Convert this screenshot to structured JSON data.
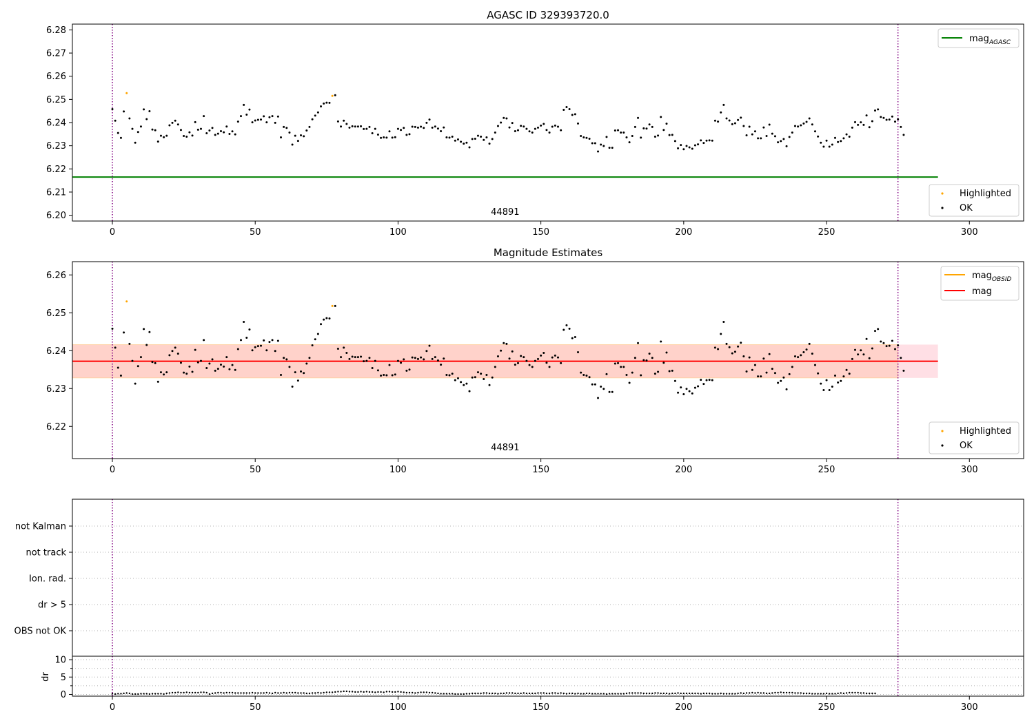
{
  "colors": {
    "agasc": "#008000",
    "obsid": "#ffa500",
    "mag": "#ff0000",
    "highlighted": "#ffa500",
    "ok": "#000000",
    "obsid_band": "#ffa07a",
    "mag_band": "#ffc0cb",
    "vline": "#800080",
    "grid": "#b0b0b0"
  },
  "chart_data": [
    {
      "type": "scatter",
      "title": "AGASC ID 329393720.0",
      "xlim": [
        -14,
        319
      ],
      "ylim": [
        6.1975,
        6.2825
      ],
      "x_ticks": [
        0,
        50,
        100,
        150,
        200,
        250,
        300
      ],
      "y_ticks": [
        6.2,
        6.21,
        6.22,
        6.23,
        6.24,
        6.25,
        6.26,
        6.27,
        6.28
      ],
      "y_tick_labels": [
        "6.20",
        "6.21",
        "6.22",
        "6.23",
        "6.24",
        "6.25",
        "6.26",
        "6.27",
        "6.28"
      ],
      "vlines": [
        0,
        275
      ],
      "hline": {
        "y": 6.2165,
        "x_range": [
          -14,
          289
        ]
      },
      "annotation": {
        "text": "44891",
        "x": 137.5,
        "y": 6.2002
      },
      "legend_upper": {
        "position": "upper-right",
        "label_main": "mag",
        "label_sub": "AGASC"
      },
      "legend_lower": {
        "position": "lower-right",
        "entries": [
          "Highlighted",
          "OK"
        ]
      },
      "highlighted": [
        [
          5,
          6.2527
        ],
        [
          77,
          6.2515
        ]
      ]
    },
    {
      "type": "scatter",
      "title": "Magnitude Estimates",
      "xlim": [
        -14,
        319
      ],
      "ylim": [
        6.2115,
        6.2635
      ],
      "x_ticks": [
        0,
        50,
        100,
        150,
        200,
        250,
        300
      ],
      "y_ticks": [
        6.22,
        6.23,
        6.24,
        6.25,
        6.26
      ],
      "y_tick_labels": [
        "6.22",
        "6.23",
        "6.24",
        "6.25",
        "6.26"
      ],
      "vlines": [
        0,
        275
      ],
      "hline": {
        "y": 6.2372,
        "x_range": [
          -14,
          289
        ]
      },
      "band_obsid": {
        "x_range": [
          -14,
          275
        ],
        "y_range": [
          6.2328,
          6.2416
        ]
      },
      "band_mag": {
        "x_range": [
          275,
          289
        ],
        "y_range": [
          6.2328,
          6.2416
        ]
      },
      "annotation": {
        "text": "44891",
        "x": 137.5,
        "y": 6.2137
      },
      "legend_upper": {
        "position": "upper-right",
        "entries": [
          {
            "label_main": "mag",
            "label_sub": "OBSID"
          },
          {
            "label_main": "mag",
            "label_sub": ""
          }
        ]
      },
      "legend_lower": {
        "position": "lower-right",
        "entries": [
          "Highlighted",
          "OK"
        ]
      },
      "highlighted": [
        [
          5,
          6.253
        ],
        [
          77,
          6.2518
        ]
      ]
    },
    {
      "type": "scatter",
      "title": "",
      "xlim": [
        -14,
        319
      ],
      "categories": [
        "not Kalman",
        "not track",
        "Ion. rad.",
        "dr > 5",
        "OBS not OK"
      ],
      "vlines": [
        0,
        275
      ],
      "points": []
    },
    {
      "type": "scatter",
      "title": "",
      "ylabel": "dr",
      "xlim": [
        -14,
        319
      ],
      "ylim": [
        -0.5,
        11
      ],
      "x_ticks": [
        0,
        50,
        100,
        150,
        200,
        250,
        300
      ],
      "y_ticks": [
        0,
        5,
        10
      ],
      "y_tick_labels": [
        "0",
        "5",
        "10"
      ],
      "vlines": [
        0,
        275
      ],
      "values": [
        0.2,
        0.1,
        0.2,
        0.2,
        0.3,
        0.4,
        0.3,
        0.1,
        0.1,
        0.1,
        0.2,
        0.2,
        0.2,
        0.1,
        0.2,
        0.2,
        0.2,
        0.2,
        0.1,
        0.3,
        0.4,
        0.5,
        0.5,
        0.6,
        0.5,
        0.5,
        0.6,
        0.5,
        0.5,
        0.5,
        0.5,
        0.6,
        0.6,
        0.5,
        0.1,
        0.3,
        0.4,
        0.5,
        0.5,
        0.4,
        0.5,
        0.5,
        0.5,
        0.4,
        0.4,
        0.4,
        0.4,
        0.4,
        0.4,
        0.5,
        0.4,
        0.4,
        0.4,
        0.4,
        0.5,
        0.4,
        0.3,
        0.5,
        0.4,
        0.4,
        0.5,
        0.4,
        0.5,
        0.5,
        0.5,
        0.4,
        0.4,
        0.4,
        0.3,
        0.3,
        0.4,
        0.4,
        0.5,
        0.4,
        0.5,
        0.6,
        0.6,
        0.6,
        0.7,
        0.8,
        0.8,
        0.9,
        0.9,
        0.8,
        0.8,
        0.7,
        0.7,
        0.8,
        0.7,
        0.8,
        0.7,
        0.7,
        0.6,
        0.7,
        0.7,
        0.6,
        0.8,
        0.8,
        0.7,
        0.7,
        0.8,
        0.7,
        0.6,
        0.5,
        0.5,
        0.5,
        0.4,
        0.5,
        0.6,
        0.6,
        0.6,
        0.5,
        0.5,
        0.4,
        0.3,
        0.2,
        0.2,
        0.2,
        0.2,
        0.2,
        0.1,
        0.1,
        0.1,
        0.1,
        0.2,
        0.2,
        0.3,
        0.3,
        0.3,
        0.3,
        0.4,
        0.4,
        0.3,
        0.3,
        0.3,
        0.2,
        0.3,
        0.3,
        0.4,
        0.4,
        0.4,
        0.3,
        0.3,
        0.3,
        0.4,
        0.3,
        0.3,
        0.3,
        0.3,
        0.4,
        0.4,
        0.4,
        0.3,
        0.3,
        0.4,
        0.4,
        0.3,
        0.4,
        0.3,
        0.2,
        0.3,
        0.3,
        0.2,
        0.3,
        0.2,
        0.2,
        0.3,
        0.3,
        0.2,
        0.2,
        0.2,
        0.2,
        0.2,
        0.1,
        0.2,
        0.2,
        0.2,
        0.2,
        0.2,
        0.2,
        0.3,
        0.4,
        0.4,
        0.4,
        0.4,
        0.4,
        0.3,
        0.3,
        0.3,
        0.3,
        0.4,
        0.4,
        0.3,
        0.3,
        0.3,
        0.2,
        0.3,
        0.3,
        0.4,
        0.3,
        0.3,
        0.3,
        0.3,
        0.3,
        0.3,
        0.3,
        0.2,
        0.3,
        0.3,
        0.3,
        0.2,
        0.2,
        0.2,
        0.3,
        0.2,
        0.2,
        0.2,
        0.2,
        0.2,
        0.3,
        0.4,
        0.3,
        0.4,
        0.4,
        0.5,
        0.4,
        0.5,
        0.4,
        0.4,
        0.3,
        0.3,
        0.4,
        0.5,
        0.5,
        0.6,
        0.5,
        0.5,
        0.5,
        0.5,
        0.4,
        0.4,
        0.4,
        0.3,
        0.3,
        0.3,
        0.2,
        0.2,
        0.2,
        0.2,
        0.2,
        0.3,
        0.2,
        0.2,
        0.2,
        0.3,
        0.4,
        0.3,
        0.4,
        0.5,
        0.5,
        0.5,
        0.5,
        0.4,
        0.4,
        0.3,
        0.3,
        0.3,
        0.3
      ]
    }
  ],
  "mag_series": [
    6.2458,
    6.2408,
    6.2355,
    6.2334,
    6.2448,
    6.2528,
    6.2418,
    6.2373,
    6.2313,
    6.2359,
    6.2383,
    6.2457,
    6.2415,
    6.2449,
    6.237,
    6.2367,
    6.2318,
    6.2343,
    6.2337,
    6.2343,
    6.2388,
    6.2399,
    6.2408,
    6.2392,
    6.2368,
    6.2342,
    6.2339,
    6.2358,
    6.2344,
    6.2402,
    6.2369,
    6.2373,
    6.2428,
    6.2354,
    6.2366,
    6.2377,
    6.2347,
    6.2352,
    6.2363,
    6.2358,
    6.2383,
    6.2351,
    6.2362,
    6.2349,
    6.2404,
    6.2428,
    6.2476,
    6.2434,
    6.2456,
    6.2401,
    6.2409,
    6.2412,
    6.2413,
    6.2427,
    6.2401,
    6.2423,
    6.2428,
    6.2399,
    6.2426,
    6.2336,
    6.2381,
    6.2377,
    6.2357,
    6.2305,
    6.2343,
    6.2321,
    6.2345,
    6.2341,
    6.2366,
    6.2381,
    6.2414,
    6.243,
    6.2444,
    6.247,
    6.2482,
    6.2486,
    6.2485,
    6.2466,
    6.2518,
    6.2405,
    6.2383,
    6.2408,
    6.2394,
    6.2378,
    6.2384,
    6.2383,
    6.2383,
    6.2384,
    6.2372,
    6.2373,
    6.2381,
    6.2354,
    6.2373,
    6.2348,
    6.2334,
    6.2336,
    6.2335,
    6.2362,
    6.2335,
    6.2337,
    6.2373,
    6.2368,
    6.2377,
    6.2347,
    6.235,
    6.2382,
    6.2381,
    6.2378,
    6.2382,
    6.2377,
    6.2399,
    6.2413,
    6.2378,
    6.2383,
    6.2374,
    6.2363,
    6.2379,
    6.2336,
    6.2335,
    6.2339,
    6.2322,
    6.2327,
    6.2317,
    6.2309,
    6.2313,
    6.2293,
    6.2329,
    6.233,
    6.2343,
    6.2339,
    6.2325,
    6.2336,
    6.2309,
    6.2329,
    6.2357,
    6.2385,
    6.24,
    6.242,
    6.2418,
    6.2379,
    6.2398,
    6.2363,
    6.2367,
    6.2386,
    6.2383,
    6.2373,
    6.2362,
    6.2357,
    6.2373,
    6.2378,
    6.2387,
    6.2394,
    6.2368,
    6.2357,
    6.2382,
    6.2387,
    6.2382,
    6.2367,
    6.2455,
    6.2467,
    6.2458,
    6.2433,
    6.2436,
    6.2396,
    6.2342,
    6.2336,
    6.2334,
    6.233,
    6.2311,
    6.2311,
    6.2275,
    6.2305,
    6.2299,
    6.2338,
    6.2291,
    6.2291,
    6.2366,
    6.2367,
    6.2357,
    6.2357,
    6.2336,
    6.2315,
    6.2342,
    6.2381,
    6.242,
    6.2335,
    6.2375,
    6.2374,
    6.2392,
    6.2381,
    6.2339,
    6.2344,
    6.2424,
    6.2368,
    6.2395,
    6.2346,
    6.2347,
    6.232,
    6.2289,
    6.2303,
    6.2285,
    6.2299,
    6.2293,
    6.2287,
    6.2302,
    6.2306,
    6.2323,
    6.2312,
    6.2322,
    6.2323,
    6.2322,
    6.2408,
    6.2404,
    6.2444,
    6.2476,
    6.2418,
    6.2409,
    6.2393,
    6.2397,
    6.2411,
    6.2421,
    6.2385,
    6.2345,
    6.2382,
    6.2349,
    6.2362,
    6.2332,
    6.2332,
    6.2379,
    6.2342,
    6.2391,
    6.2352,
    6.2341,
    6.2315,
    6.232,
    6.2329,
    6.2298,
    6.2338,
    6.2357,
    6.2385,
    6.2383,
    6.2388,
    6.2396,
    6.2403,
    6.2418,
    6.2392,
    6.2362,
    6.234,
    6.2313,
    6.2296,
    6.2322,
    6.2296,
    6.2305,
    6.2334,
    6.2316,
    6.232,
    6.2332,
    6.2349,
    6.2339,
    6.2378,
    6.2402,
    6.239,
    6.2401,
    6.239,
    6.2431,
    6.238,
    6.2406,
    6.2452,
    6.2457,
    6.2424,
    6.242,
    6.2412,
    6.2413,
    6.2426,
    6.2404,
    6.2414,
    6.2381,
    6.2347
  ]
}
